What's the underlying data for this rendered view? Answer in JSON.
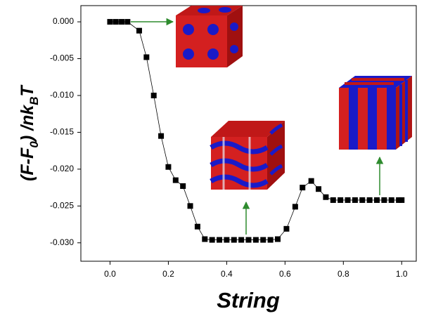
{
  "chart_data": {
    "type": "line",
    "x_label": "String",
    "y_label": [
      {
        "text": "(F-F"
      },
      {
        "text": "0",
        "sub": true
      },
      {
        "text": ") /nk"
      },
      {
        "text": "B",
        "sub": true
      },
      {
        "text": "T"
      }
    ],
    "x": [
      0,
      0.02,
      0.04,
      0.06,
      0.1,
      0.125,
      0.15,
      0.175,
      0.2,
      0.225,
      0.25,
      0.275,
      0.3,
      0.325,
      0.35,
      0.375,
      0.4,
      0.425,
      0.45,
      0.475,
      0.5,
      0.525,
      0.55,
      0.575,
      0.605,
      0.635,
      0.66,
      0.69,
      0.715,
      0.74,
      0.765,
      0.79,
      0.815,
      0.84,
      0.865,
      0.89,
      0.915,
      0.94,
      0.965,
      0.99,
      1.0
    ],
    "series": [
      {
        "name": "String",
        "color": "#000000",
        "values": [
          0,
          0,
          0,
          0,
          -0.0012,
          -0.0048,
          -0.01,
          -0.0155,
          -0.0197,
          -0.0215,
          -0.0223,
          -0.025,
          -0.0278,
          -0.0295,
          -0.0296,
          -0.0296,
          -0.0296,
          -0.0296,
          -0.0296,
          -0.0296,
          -0.0296,
          -0.0296,
          -0.0296,
          -0.0295,
          -0.0281,
          -0.0251,
          -0.0225,
          -0.0216,
          -0.0227,
          -0.0238,
          -0.0242,
          -0.0242,
          -0.0242,
          -0.0242,
          -0.0242,
          -0.0242,
          -0.0242,
          -0.0242,
          -0.0242,
          -0.0242,
          -0.0242
        ]
      }
    ],
    "xlim": [
      -0.1,
      1.05
    ],
    "ylim": [
      -0.0325,
      0.0022
    ],
    "xticks": [
      {
        "value": 0,
        "label": "0.0"
      },
      {
        "value": 0.2,
        "label": "0.2"
      },
      {
        "value": 0.4,
        "label": "0.4"
      },
      {
        "value": 0.6,
        "label": "0.6"
      },
      {
        "value": 0.8,
        "label": "0.8"
      },
      {
        "value": 1,
        "label": "1.0"
      }
    ],
    "yticks": [
      {
        "value": 0,
        "label": "0.000"
      },
      {
        "value": -0.005,
        "label": "-0.005"
      },
      {
        "value": -0.01,
        "label": "-0.010"
      },
      {
        "value": -0.015,
        "label": "-0.015"
      },
      {
        "value": -0.02,
        "label": "-0.020"
      },
      {
        "value": -0.025,
        "label": "-0.025"
      },
      {
        "value": -0.03,
        "label": "-0.030"
      }
    ],
    "grid": false
  }
}
